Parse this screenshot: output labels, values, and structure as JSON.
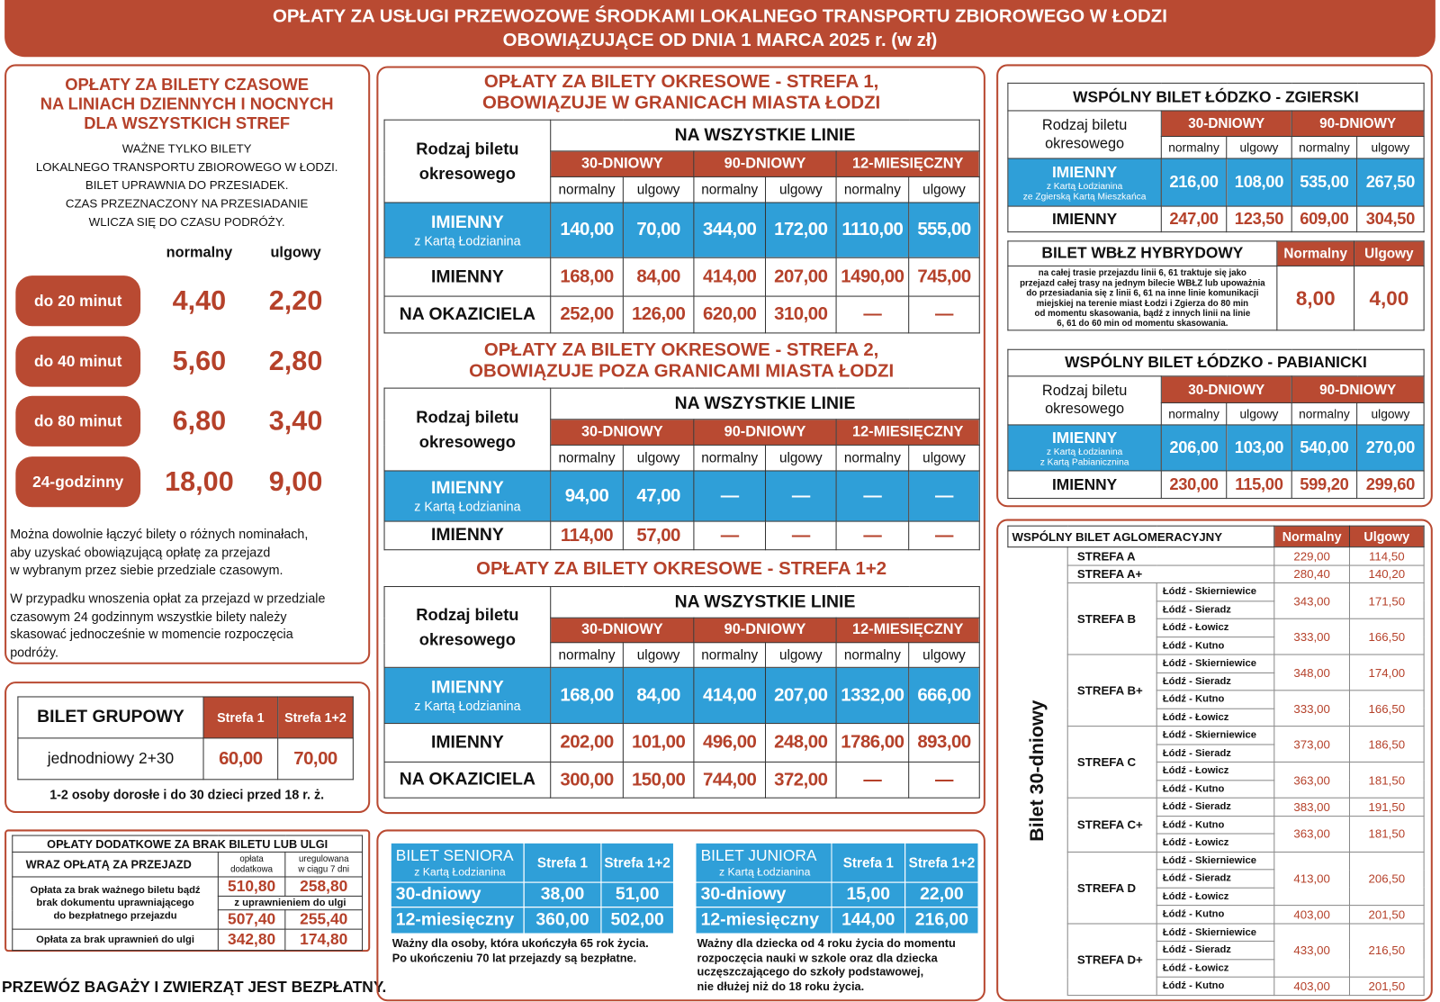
{
  "header": {
    "lines": [
      "OPŁATY ZA USŁUGI PRZEWOZOWE ŚRODKAMI LOKALNEGO TRANSPORTU ZBIOROWEGO W ŁODZI",
      "OBOWIĄZUJĄCE OD DNIA 1 MARCA 2025 r. (w zł)"
    ]
  },
  "time_tickets": {
    "title": [
      "OPŁATY ZA BILETY CZASOWE",
      "NA LINIACH  DZIENNYCH I NOCNYCH",
      "DLA WSZYSTKICH STREF"
    ],
    "notes": [
      "WAŻNE TYLKO BILETY",
      "LOKALNEGO TRANSPORTU ZBIOROWEGO W ŁODZI.",
      "BILET UPRAWNIA DO PRZESIADEK.",
      "CZAS PRZEZNACZONY NA PRZESIADANIE",
      "WLICZA SIĘ DO CZASU PODRÓŻY."
    ],
    "columns": [
      "normalny",
      "ulgowy"
    ],
    "rows": [
      {
        "label": "do 20 minut",
        "prices": [
          "4,40",
          "2,20"
        ]
      },
      {
        "label": "do 40 minut",
        "prices": [
          "5,60",
          "2,80"
        ]
      },
      {
        "label": "do 80 minut",
        "prices": [
          "6,80",
          "3,40"
        ]
      },
      {
        "label": "24-godzinny",
        "prices": [
          "18,00",
          "9,00"
        ]
      }
    ],
    "paragraph1": [
      "Można dowolnie łączyć bilety o różnych nominałach,",
      "aby uzyskać obowiązującą opłatę za przejazd",
      "w wybranym przez siebie przedziale czasowym."
    ],
    "paragraph2": [
      "W przypadku wnoszenia opłat za przejazd w przedziale",
      "czasowym 24 godzinnym wszystkie bilety należy",
      "skasować jednocześnie w momencie rozpoczęcia",
      "podróży."
    ]
  },
  "group_ticket": {
    "title": "BILET GRUPOWY",
    "columns": [
      "Strefa 1",
      "Strefa 1+2"
    ],
    "row_label": "jednodniowy 2+30",
    "prices": [
      "60,00",
      "70,00"
    ],
    "note": "1-2 osoby dorosłe i do 30 dzieci przed 18 r. ż."
  },
  "surcharges": {
    "title": [
      "OPŁATY DODATKOWE ZA BRAK BILETU LUB ULGI",
      "WRAZ OPŁATĄ ZA PRZEJAZD"
    ],
    "columns": [
      [
        "opłata",
        "dodatkowa"
      ],
      [
        "uregulowana",
        "w ciągu 7 dni"
      ]
    ],
    "rows": [
      {
        "label": [
          "Opłata za brak ważnego biletu bądź",
          "brak dokumentu uprawniającego",
          "do bezpłatnego przejazdu"
        ],
        "prices": [
          "510,80",
          "258,80"
        ],
        "relief_label": "z uprawnieniem do ulgi",
        "relief_prices": [
          "507,40",
          "255,40"
        ]
      },
      {
        "label": [
          "Opłata za brak uprawnień do ulgi"
        ],
        "prices": [
          "342,80",
          "174,80"
        ]
      }
    ]
  },
  "footer_note": "PRZEWÓZ BAGAŻY I ZWIERZĄT JEST BEZPŁATNY.",
  "zones": [
    {
      "title": [
        "OPŁATY ZA BILETY OKRESOWE - STREFA 1,",
        "OBOWIĄZUJE W GRANICACH MIASTA ŁODZI"
      ],
      "type_label": [
        "Rodzaj biletu",
        "okresowego"
      ],
      "lines_header": "NA WSZYSTKIE LINIE",
      "periods": [
        "30-DNIOWY",
        "90-DNIOWY",
        "12-MIESIĘCZNY"
      ],
      "fare_types": [
        "normalny",
        "ulgowy",
        "normalny",
        "ulgowy",
        "normalny",
        "ulgowy"
      ],
      "rows": [
        {
          "label": "IMIENNY",
          "sublabel": "z Kartą Łodzianina",
          "prices": [
            "140,00",
            "70,00",
            "344,00",
            "172,00",
            "1110,00",
            "555,00"
          ]
        },
        {
          "label": "IMIENNY",
          "prices": [
            "168,00",
            "84,00",
            "414,00",
            "207,00",
            "1490,00",
            "745,00"
          ]
        },
        {
          "label": "NA OKAZICIELA",
          "prices": [
            "252,00",
            "126,00",
            "620,00",
            "310,00",
            "—",
            "—"
          ]
        }
      ]
    },
    {
      "title": [
        "OPŁATY ZA BILETY OKRESOWE - STREFA 2,",
        "OBOWIĄZUJE POZA GRANICAMI MIASTA ŁODZI"
      ],
      "type_label": [
        "Rodzaj biletu",
        "okresowego"
      ],
      "lines_header": "NA WSZYSTKIE LINIE",
      "periods": [
        "30-DNIOWY",
        "90-DNIOWY",
        "12-MIESIĘCZNY"
      ],
      "fare_types": [
        "normalny",
        "ulgowy",
        "normalny",
        "ulgowy",
        "normalny",
        "ulgowy"
      ],
      "rows": [
        {
          "label": "IMIENNY",
          "sublabel": "z Kartą Łodzianina",
          "prices": [
            "94,00",
            "47,00",
            "—",
            "—",
            "—",
            "—"
          ]
        },
        {
          "label": "IMIENNY",
          "prices": [
            "114,00",
            "57,00",
            "—",
            "—",
            "—",
            "—"
          ]
        }
      ]
    },
    {
      "title": [
        "OPŁATY ZA BILETY OKRESOWE - STREFA 1+2"
      ],
      "type_label": [
        "Rodzaj biletu",
        "okresowego"
      ],
      "lines_header": "NA WSZYSTKIE LINIE",
      "periods": [
        "30-DNIOWY",
        "90-DNIOWY",
        "12-MIESIĘCZNY"
      ],
      "fare_types": [
        "normalny",
        "ulgowy",
        "normalny",
        "ulgowy",
        "normalny",
        "ulgowy"
      ],
      "rows": [
        {
          "label": "IMIENNY",
          "sublabel": "z Kartą Łodzianina",
          "prices": [
            "168,00",
            "84,00",
            "414,00",
            "207,00",
            "1332,00",
            "666,00"
          ]
        },
        {
          "label": "IMIENNY",
          "prices": [
            "202,00",
            "101,00",
            "496,00",
            "248,00",
            "1786,00",
            "893,00"
          ]
        },
        {
          "label": "NA OKAZICIELA",
          "prices": [
            "300,00",
            "150,00",
            "744,00",
            "372,00",
            "—",
            "—"
          ]
        }
      ]
    }
  ],
  "senior": {
    "title": "BILET SENIORA",
    "subtitle": "z Kartą Łodzianina",
    "columns": [
      "Strefa 1",
      "Strefa 1+2"
    ],
    "rows": [
      {
        "label": "30-dniowy",
        "prices": [
          "38,00",
          "51,00"
        ]
      },
      {
        "label": "12-miesięczny",
        "prices": [
          "360,00",
          "502,00"
        ]
      }
    ],
    "note": [
      "Ważny dla osoby, która ukończyła 65 rok życia.",
      "Po ukończeniu 70 lat przejazdy są bezpłatne."
    ]
  },
  "junior": {
    "title": "BILET JUNIORA",
    "subtitle": "z Kartą Łodzianina",
    "columns": [
      "Strefa 1",
      "Strefa 1+2"
    ],
    "rows": [
      {
        "label": "30-dniowy",
        "prices": [
          "15,00",
          "22,00"
        ]
      },
      {
        "label": "12-miesięczny",
        "prices": [
          "144,00",
          "216,00"
        ]
      }
    ],
    "note": [
      "Ważny dla dziecka od 4 roku życia do momentu",
      "rozpoczęcia nauki w szkole oraz dla dziecka",
      "uczęszczającego do szkoły podstawowej,",
      "nie dłużej niż do 18 roku życia."
    ]
  },
  "zgierz": {
    "title": "WSPÓLNY BILET ŁÓDZKO - ZGIERSKI",
    "type_label": [
      "Rodzaj biletu",
      "okresowego"
    ],
    "periods": [
      "30-DNIOWY",
      "90-DNIOWY"
    ],
    "fare_types": [
      "normalny",
      "ulgowy",
      "normalny",
      "ulgowy"
    ],
    "rows": [
      {
        "label": "IMIENNY",
        "sublabel": [
          "z Kartą Łodzianina",
          "ze Zgierską Kartą Mieszkańca"
        ],
        "prices": [
          "216,00",
          "108,00",
          "535,00",
          "267,50"
        ]
      },
      {
        "label": "IMIENNY",
        "prices": [
          "247,00",
          "123,50",
          "609,00",
          "304,50"
        ]
      }
    ]
  },
  "hybrid": {
    "title": "BILET WBŁZ HYBRYDOWY",
    "columns": [
      "Normalny",
      "Ulgowy"
    ],
    "description": [
      "na całej trasie przejazdu linii 6, 61 traktuje się jako",
      "przejazd całej trasy na jednym bilecie WBŁZ lub upoważnia",
      "do przesiadania się z linii 6, 61 na inne linie komunikacji",
      "miejskiej na terenie miast Łodzi i Zgierza do 80 min",
      "od momentu skasowania, bądź z innych linii na linie",
      "6, 61 do 60 min od momentu skasowania."
    ],
    "prices": [
      "8,00",
      "4,00"
    ]
  },
  "pabianice": {
    "title": "WSPÓLNY BILET ŁÓDZKO - PABIANICKI",
    "type_label": [
      "Rodzaj biletu",
      "okresowego"
    ],
    "periods": [
      "30-DNIOWY",
      "90-DNIOWY"
    ],
    "fare_types": [
      "normalny",
      "ulgowy",
      "normalny",
      "ulgowy"
    ],
    "rows": [
      {
        "label": "IMIENNY",
        "sublabel": [
          "z Kartą Łodzianina",
          "z Kartą Pabianicznina"
        ],
        "prices": [
          "206,00",
          "103,00",
          "540,00",
          "270,00"
        ]
      },
      {
        "label": "IMIENNY",
        "prices": [
          "230,00",
          "115,00",
          "599,20",
          "299,60"
        ]
      }
    ]
  },
  "agglomeration": {
    "title": "WSPÓLNY BILET AGLOMERACYJNY",
    "columns": [
      "Normalny",
      "Ulgowy"
    ],
    "side_label": "Bilet 30-dniowy",
    "zones": [
      {
        "name": "STREFA  A",
        "prices": [
          "229,00",
          "114,50"
        ]
      },
      {
        "name": "STREFA  A+",
        "prices": [
          "280,40",
          "140,20"
        ]
      },
      {
        "name": "STREFA  B",
        "groups": [
          {
            "routes": [
              "Łódź - Skierniewice",
              "Łódź - Sieradz"
            ],
            "prices": [
              "343,00",
              "171,50"
            ]
          },
          {
            "routes": [
              "Łódź - Łowicz",
              "Łódź - Kutno"
            ],
            "prices": [
              "333,00",
              "166,50"
            ]
          }
        ]
      },
      {
        "name": "STREFA  B+",
        "groups": [
          {
            "routes": [
              "Łódź - Skierniewice",
              "Łódź - Sieradz"
            ],
            "prices": [
              "348,00",
              "174,00"
            ]
          },
          {
            "routes": [
              "Łódź - Kutno",
              "Łódź - Łowicz"
            ],
            "prices": [
              "333,00",
              "166,50"
            ]
          }
        ]
      },
      {
        "name": "STREFA  C",
        "groups": [
          {
            "routes": [
              "Łódź - Skierniewice",
              "Łódź - Sieradz"
            ],
            "prices": [
              "373,00",
              "186,50"
            ]
          },
          {
            "routes": [
              "Łódź - Łowicz",
              "Łódź - Kutno"
            ],
            "prices": [
              "363,00",
              "181,50"
            ]
          }
        ]
      },
      {
        "name": "STREFA  C+",
        "groups": [
          {
            "routes": [
              "Łódź - Sieradz"
            ],
            "prices": [
              "383,00",
              "191,50"
            ]
          },
          {
            "routes": [
              "Łódź - Kutno",
              "Łódź - Łowicz"
            ],
            "prices": [
              "363,00",
              "181,50"
            ]
          }
        ]
      },
      {
        "name": "STREFA  D",
        "groups": [
          {
            "routes": [
              "Łódź - Skierniewice",
              "Łódź - Sieradz",
              "Łódź - Łowicz"
            ],
            "prices": [
              "413,00",
              "206,50"
            ]
          },
          {
            "routes": [
              "Łódź - Kutno"
            ],
            "prices": [
              "403,00",
              "201,50"
            ]
          }
        ]
      },
      {
        "name": "STREFA  D+",
        "groups": [
          {
            "routes": [
              "Łódź - Skierniewice",
              "Łódź - Sieradz",
              "Łódź - Łowicz"
            ],
            "prices": [
              "433,00",
              "216,50"
            ]
          },
          {
            "routes": [
              "Łódź - Kutno"
            ],
            "prices": [
              "403,00",
              "201,50"
            ]
          }
        ]
      }
    ]
  }
}
